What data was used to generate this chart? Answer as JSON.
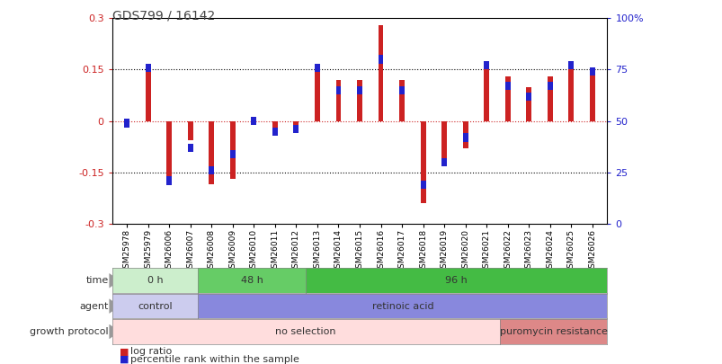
{
  "title": "GDS799 / 16142",
  "samples": [
    "GSM25978",
    "GSM25979",
    "GSM26006",
    "GSM26007",
    "GSM26008",
    "GSM26009",
    "GSM26010",
    "GSM26011",
    "GSM26012",
    "GSM26013",
    "GSM26014",
    "GSM26015",
    "GSM26016",
    "GSM26017",
    "GSM26018",
    "GSM26019",
    "GSM26020",
    "GSM26021",
    "GSM26022",
    "GSM26023",
    "GSM26024",
    "GSM26025",
    "GSM26026"
  ],
  "log_ratio": [
    -0.01,
    0.165,
    -0.18,
    -0.055,
    -0.185,
    -0.17,
    -0.01,
    -0.04,
    -0.03,
    0.155,
    0.12,
    0.12,
    0.28,
    0.12,
    -0.24,
    -0.13,
    -0.08,
    0.17,
    0.13,
    0.1,
    0.13,
    0.17,
    0.15
  ],
  "percentile": [
    49,
    76,
    21,
    37,
    26,
    34,
    50,
    45,
    46,
    76,
    65,
    65,
    80,
    65,
    19,
    30,
    42,
    77,
    67,
    62,
    67,
    77,
    74
  ],
  "ylim": [
    -0.3,
    0.3
  ],
  "y2lim": [
    0,
    100
  ],
  "bar_color": "#cc2222",
  "pct_color": "#2222cc",
  "time_groups": [
    {
      "label": "0 h",
      "start": 0,
      "end": 4,
      "color": "#cceecc"
    },
    {
      "label": "48 h",
      "start": 4,
      "end": 9,
      "color": "#66cc66"
    },
    {
      "label": "96 h",
      "start": 9,
      "end": 23,
      "color": "#44bb44"
    }
  ],
  "agent_groups": [
    {
      "label": "control",
      "start": 0,
      "end": 4,
      "color": "#ccccee"
    },
    {
      "label": "retinoic acid",
      "start": 4,
      "end": 23,
      "color": "#8888dd"
    }
  ],
  "growth_groups": [
    {
      "label": "no selection",
      "start": 0,
      "end": 18,
      "color": "#ffdddd"
    },
    {
      "label": "puromycin resistance",
      "start": 18,
      "end": 23,
      "color": "#dd8888"
    }
  ],
  "legend_items": [
    {
      "label": "log ratio",
      "color": "#cc2222"
    },
    {
      "label": "percentile rank within the sample",
      "color": "#2222cc"
    }
  ],
  "bg_color": "#ffffff",
  "time_label": "time",
  "agent_label": "agent",
  "growth_label": "growth protocol"
}
